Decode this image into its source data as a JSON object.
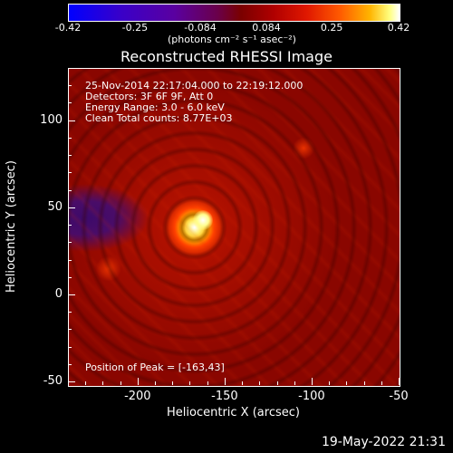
{
  "colorbar": {
    "ticks": [
      "-0.42",
      "-0.25",
      "-0.084",
      "0.084",
      "0.25",
      "0.42"
    ],
    "units": "(photons cm⁻² s⁻¹ asec⁻²)"
  },
  "chart_data": {
    "type": "heatmap",
    "title": "Reconstructed RHESSI Image",
    "xlabel": "Heliocentric X (arcsec)",
    "ylabel": "Heliocentric Y (arcsec)",
    "xlim": [
      -240,
      -50
    ],
    "ylim": [
      -52,
      130
    ],
    "x_ticks": [
      "-200",
      "-150",
      "-100",
      "-50"
    ],
    "y_ticks": [
      "100",
      "50",
      "0",
      "-50"
    ],
    "colorbar_range": [
      -0.42,
      0.42
    ],
    "peak": {
      "x": -163,
      "y": 43
    },
    "annotations": {
      "time_range": "25-Nov-2014 22:17:04.000 to 22:19:12.000",
      "detectors": "Detectors: 3F 6F 9F, Att 0",
      "energy": "Energy Range: 3.0 - 6.0 keV",
      "clean": "Clean     Total counts: 8.77E+03",
      "peak_text": "Position of Peak = [-163,43]"
    }
  },
  "footer": {
    "timestamp": "19-May-2022 21:31"
  },
  "colors": {
    "background": "#000000",
    "peak": "#ffffff"
  }
}
